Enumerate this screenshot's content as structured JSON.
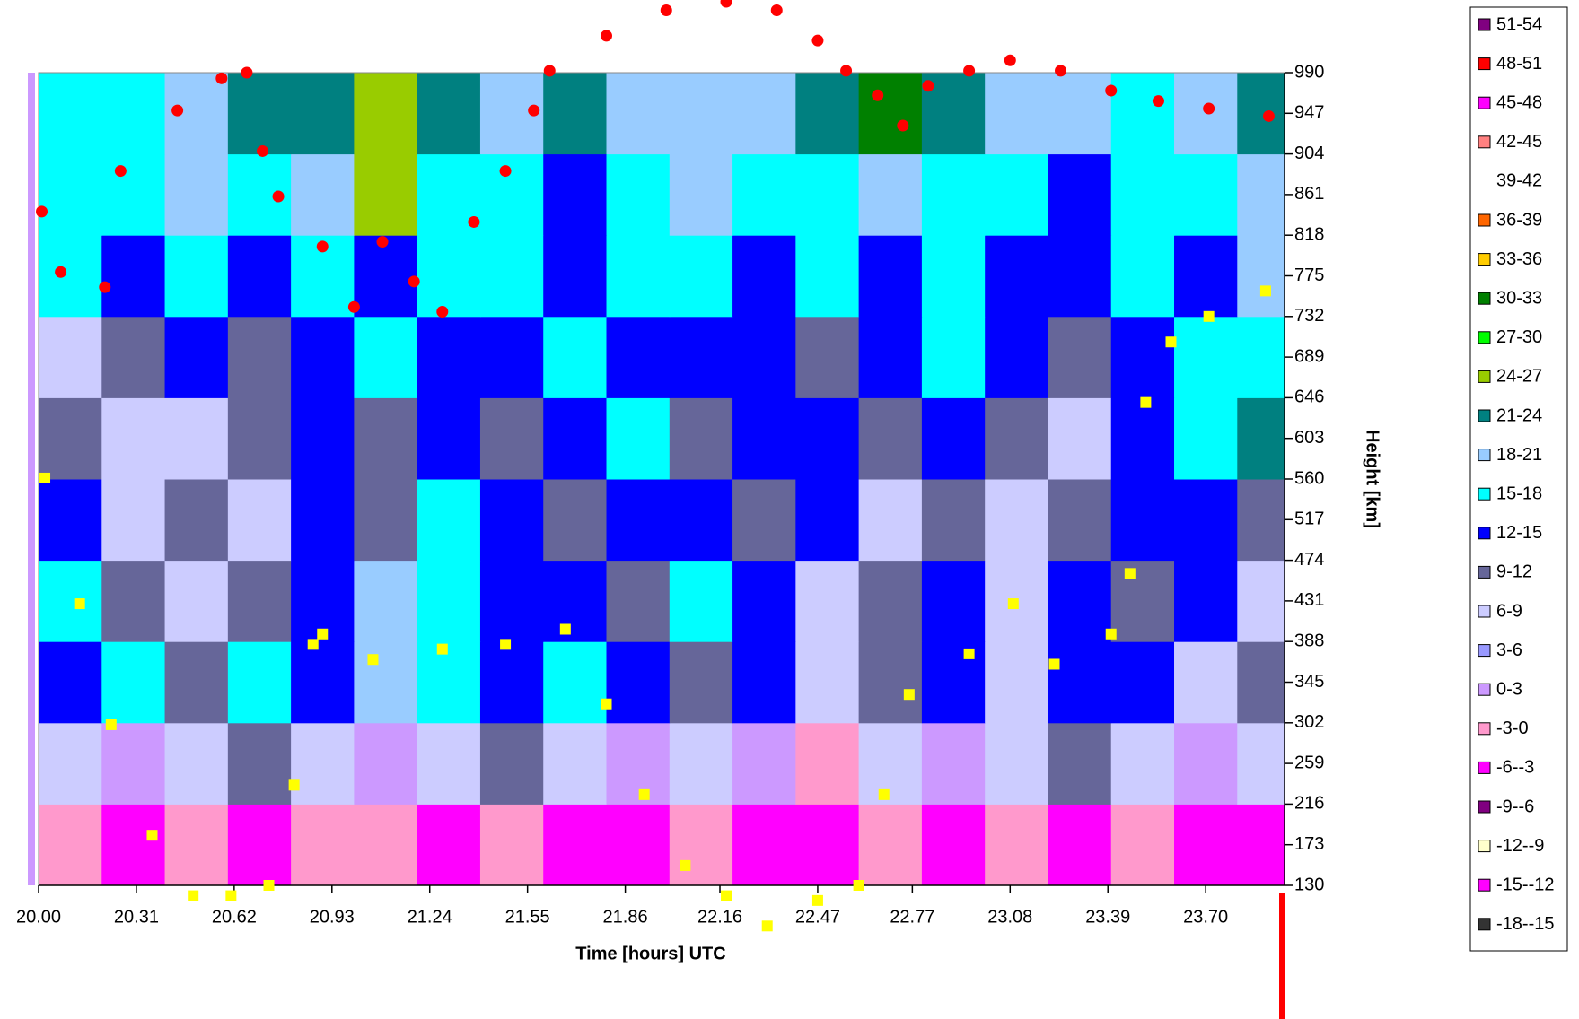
{
  "chart_data": {
    "type": "contour",
    "x_label": "Time  [hours] UTC",
    "y_label": "Height [km]",
    "xlim": [
      20,
      23.95
    ],
    "ylim": [
      130,
      990
    ],
    "xticks": [
      {
        "value": 20,
        "label": "20.00"
      },
      20.31,
      20.62,
      20.93,
      21.24,
      21.55,
      21.86,
      22.16,
      22.47,
      22.77,
      23.08,
      23.39,
      {
        "value": 23.7,
        "label": "23.70"
      }
    ],
    "yticks": [
      130,
      173,
      216,
      259,
      302,
      345,
      388,
      431,
      474,
      517,
      560,
      603,
      646,
      689,
      732,
      775,
      818,
      861,
      904,
      947,
      990
    ],
    "grid": false,
    "legend_position": "right",
    "levels": [
      {
        "label": "51-54",
        "min": 51,
        "max": 54,
        "color": "#800080"
      },
      {
        "label": "48-51",
        "min": 48,
        "max": 51,
        "color": "#ff0000"
      },
      {
        "label": "45-48",
        "min": 45,
        "max": 48,
        "color": "#ff00ff"
      },
      {
        "label": "42-45",
        "min": 42,
        "max": 45,
        "color": "#ff8080"
      },
      {
        "label": "39-42",
        "min": 39,
        "max": 42,
        "color": "#ffffff"
      },
      {
        "label": "36-39",
        "min": 36,
        "max": 39,
        "color": "#ff6600"
      },
      {
        "label": "33-36",
        "min": 33,
        "max": 36,
        "color": "#ffcc00"
      },
      {
        "label": "30-33",
        "min": 30,
        "max": 33,
        "color": "#008000"
      },
      {
        "label": "27-30",
        "min": 27,
        "max": 30,
        "color": "#00ff00"
      },
      {
        "label": "24-27",
        "min": 24,
        "max": 27,
        "color": "#99cc00"
      },
      {
        "label": "21-24",
        "min": 21,
        "max": 24,
        "color": "#008080"
      },
      {
        "label": "18-21",
        "min": 18,
        "max": 21,
        "color": "#99ccff"
      },
      {
        "label": "15-18",
        "min": 15,
        "max": 18,
        "color": "#00ffff"
      },
      {
        "label": "12-15",
        "min": 12,
        "max": 15,
        "color": "#0000ff"
      },
      {
        "label": "9-12",
        "min": 9,
        "max": 12,
        "color": "#666699"
      },
      {
        "label": "6-9",
        "min": 6,
        "max": 9,
        "color": "#ccccff"
      },
      {
        "label": "3-6",
        "min": 3,
        "max": 6,
        "color": "#9999ff"
      },
      {
        "label": "0-3",
        "min": 0,
        "max": 3,
        "color": "#cc99ff"
      },
      {
        "label": "-3-0",
        "min": -3,
        "max": 0,
        "color": "#ff99cc"
      },
      {
        "label": "-6--3",
        "min": -6,
        "max": -3,
        "color": "#ff00ff"
      },
      {
        "label": "-9--6",
        "min": -9,
        "max": -6,
        "color": "#800080"
      },
      {
        "label": "-12--9",
        "min": -12,
        "max": -9,
        "color": "#ffffcc"
      },
      {
        "label": "-15--12",
        "min": -15,
        "max": -12,
        "color": "#ff00ff"
      },
      {
        "label": "-18--15",
        "min": -18,
        "max": -15,
        "color": "#333333"
      }
    ],
    "x": [
      20.1,
      20.3,
      20.5,
      20.7,
      20.9,
      21.1,
      21.3,
      21.5,
      21.7,
      21.9,
      22.1,
      22.3,
      22.5,
      22.7,
      22.9,
      23.1,
      23.3,
      23.5,
      23.7,
      23.9
    ],
    "y": [
      173,
      259,
      345,
      431,
      517,
      603,
      689,
      775,
      861,
      947
    ],
    "z": [
      [
        -1,
        -13,
        -1,
        -13,
        -1,
        -1,
        -13,
        -1,
        -13,
        -13,
        -1,
        -13,
        -13,
        -1,
        -13,
        -1,
        -13,
        -1,
        -13,
        -13
      ],
      [
        7,
        2,
        7,
        10,
        7,
        2,
        7,
        10,
        7,
        2,
        7,
        1,
        -1,
        7,
        2,
        7,
        10,
        7,
        2,
        7
      ],
      [
        13,
        16,
        10,
        16,
        13,
        19,
        16,
        13,
        16,
        13,
        10,
        13,
        7,
        10,
        13,
        7,
        13,
        13,
        7,
        10
      ],
      [
        16,
        10,
        7,
        10,
        13,
        19,
        16,
        13,
        13,
        10,
        16,
        13,
        7,
        10,
        13,
        7,
        13,
        10,
        13,
        7
      ],
      [
        13,
        7,
        10,
        7,
        13,
        10,
        16,
        13,
        10,
        13,
        13,
        10,
        13,
        7,
        10,
        7,
        10,
        13,
        13,
        10
      ],
      [
        10,
        7,
        7,
        10,
        13,
        10,
        13,
        10,
        13,
        16,
        10,
        13,
        13,
        10,
        13,
        10,
        7,
        13,
        16,
        22
      ],
      [
        7,
        10,
        13,
        10,
        13,
        16,
        13,
        13,
        16,
        13,
        13,
        13,
        10,
        13,
        16,
        13,
        10,
        13,
        16,
        16
      ],
      [
        16,
        13,
        16,
        13,
        16,
        13,
        16,
        16,
        13,
        16,
        16,
        13,
        16,
        13,
        16,
        13,
        13,
        16,
        13,
        19
      ],
      [
        16,
        16,
        19,
        16,
        19,
        25,
        16,
        16,
        13,
        16,
        19,
        16,
        16,
        19,
        16,
        16,
        13,
        16,
        16,
        19
      ],
      [
        16,
        16,
        19,
        22,
        22,
        25,
        22,
        19,
        22,
        19,
        19,
        19,
        22,
        31,
        22,
        19,
        19,
        16,
        19,
        22
      ]
    ],
    "overlays": [
      {
        "color": "#ff0000",
        "marker": "circle",
        "x": [
          20.01,
          20.07,
          20.21,
          20.26,
          20.44,
          20.58,
          20.66,
          20.71,
          20.76,
          20.9,
          21.0,
          21.09,
          21.19,
          21.28,
          21.38,
          21.48,
          21.57,
          21.62,
          21.8,
          21.99,
          22.18,
          22.34,
          22.47,
          22.56,
          22.66,
          22.74,
          22.82,
          22.95,
          23.08,
          23.24,
          23.4,
          23.55,
          23.71,
          23.9
        ],
        "y": [
          843,
          779,
          763,
          886,
          950,
          984,
          990,
          907,
          859,
          806,
          742,
          811,
          769,
          737,
          832,
          886,
          950,
          992,
          1029,
          1056,
          1065,
          1056,
          1024,
          992,
          966,
          934,
          976,
          992,
          1003,
          992,
          971,
          960,
          952,
          944
        ]
      },
      {
        "color": "#ffff00",
        "marker": "square",
        "x": [
          20.02,
          20.13,
          20.23,
          20.36,
          20.49,
          20.61,
          20.73,
          20.81,
          20.87,
          20.9,
          21.06,
          21.28,
          21.48,
          21.67,
          21.8,
          21.92,
          22.05,
          22.18,
          22.31,
          22.47,
          22.6,
          22.68,
          22.76,
          22.95,
          23.09,
          23.22,
          23.4,
          23.46,
          23.51,
          23.59,
          23.71,
          23.89
        ],
        "y": [
          561,
          428,
          300,
          183,
          119,
          119,
          130,
          236,
          385,
          396,
          369,
          380,
          385,
          401,
          322,
          226,
          151,
          119,
          87,
          114,
          130,
          226,
          332,
          375,
          428,
          364,
          396,
          460,
          641,
          705,
          732,
          759
        ]
      }
    ]
  }
}
